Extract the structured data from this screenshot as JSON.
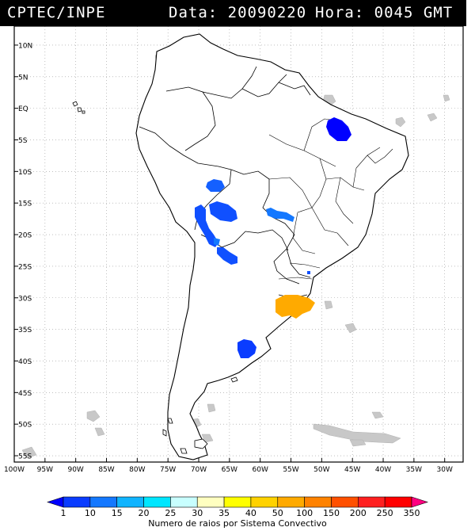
{
  "header": {
    "org": "CPTEC/INPE",
    "date_text": "Data: 20090220",
    "hour_text": "Hora: 0045 GMT"
  },
  "map": {
    "lat_labels": [
      "10N",
      "5N",
      "EQ",
      "5S",
      "10S",
      "15S",
      "20S",
      "25S",
      "30S",
      "35S",
      "40S",
      "45S",
      "50S",
      "55S"
    ],
    "lat_values": [
      10,
      5,
      0,
      -5,
      -10,
      -15,
      -20,
      -25,
      -30,
      -35,
      -40,
      -45,
      -50,
      -55
    ],
    "lon_labels": [
      "100W",
      "95W",
      "90W",
      "85W",
      "80W",
      "75W",
      "70W",
      "65W",
      "60W",
      "55W",
      "50W",
      "45W",
      "40W",
      "35W",
      "30W"
    ],
    "lon_values": [
      -100,
      -95,
      -90,
      -85,
      -80,
      -75,
      -70,
      -65,
      -60,
      -55,
      -50,
      -45,
      -40,
      -35,
      -30
    ],
    "extent": {
      "lon_min": -100,
      "lon_max": -27,
      "lat_min": -56,
      "lat_max": 13
    }
  },
  "colorbar": {
    "tick_labels": [
      "1",
      "10",
      "15",
      "20",
      "25",
      "30",
      "35",
      "40",
      "50",
      "100",
      "150",
      "200",
      "250",
      "350"
    ],
    "colors": [
      "#0000ff",
      "#0a3cff",
      "#1478ff",
      "#10b4ff",
      "#00e6ff",
      "#c8ffff",
      "#ffffc0",
      "#ffff00",
      "#ffd200",
      "#ffaa00",
      "#ff8200",
      "#ff5000",
      "#ff2020",
      "#ff0000",
      "#ff0080"
    ],
    "label": "Numero de raios por Sistema Convectivo"
  }
}
